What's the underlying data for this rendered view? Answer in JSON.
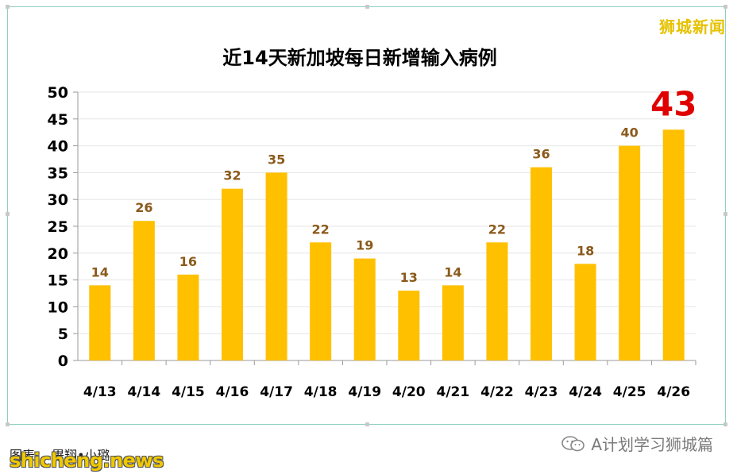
{
  "brand_top_right": "狮城新闻",
  "credit": "图表：  畢翔•小璐",
  "watermark_bottom_left": "shicheng.news",
  "watermark_bottom_right": "A计划学习狮城篇",
  "icons": {
    "wechat": "wechat-icon"
  },
  "colors": {
    "bar": "#FFC000",
    "label": "#8B5A1B",
    "highlight": "#E00000",
    "axis_text": "#000000"
  },
  "chart_data": {
    "type": "bar",
    "title": "近14天新加坡每日新增输入病例",
    "xlabel": "",
    "ylabel": "",
    "categories": [
      "4/13",
      "4/14",
      "4/15",
      "4/16",
      "4/17",
      "4/18",
      "4/19",
      "4/20",
      "4/21",
      "4/22",
      "4/23",
      "4/24",
      "4/25",
      "4/26"
    ],
    "values": [
      14,
      26,
      16,
      32,
      35,
      22,
      19,
      13,
      14,
      22,
      36,
      18,
      40,
      43
    ],
    "ylim": [
      0,
      50
    ],
    "yticks": [
      0,
      5,
      10,
      15,
      20,
      25,
      30,
      35,
      40,
      45,
      50
    ],
    "grid": true,
    "legend": "none",
    "highlight_last_label": true
  }
}
